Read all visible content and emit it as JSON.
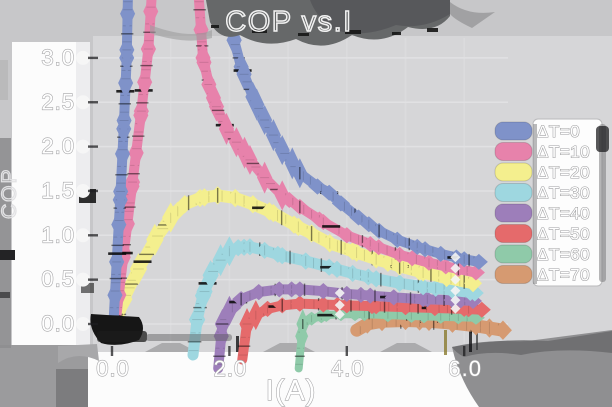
{
  "title": "COP vs.I",
  "axes": {
    "x": {
      "label": "I(A)",
      "ticks": [
        {
          "label": "0.0",
          "value": 0.0
        },
        {
          "label": "2.0",
          "value": 2.0
        },
        {
          "label": "4.0",
          "value": 4.0
        },
        {
          "label": "6.0",
          "value": 6.0
        }
      ]
    },
    "y": {
      "label": "COP",
      "ticks": [
        {
          "label": "3.0",
          "value": 3.0
        },
        {
          "label": "2.5",
          "value": 2.5
        },
        {
          "label": "2.0",
          "value": 2.0
        },
        {
          "label": "1.5",
          "value": 1.5
        },
        {
          "label": "1.0",
          "value": 1.0
        },
        {
          "label": "0.5",
          "value": 0.5
        },
        {
          "label": "0.0",
          "value": 0.0
        }
      ]
    }
  },
  "legend": {
    "position": "right",
    "items": [
      "ΔT=0",
      "ΔT=10",
      "ΔT=20",
      "ΔT=30",
      "ΔT=40",
      "ΔT=50",
      "ΔT=60",
      "ΔT=70"
    ]
  },
  "colors": {
    "background": "#c7c7c9",
    "plot_background": "#d6d6d8",
    "grid": "#e3e3e5",
    "label_strip": "#fcfcfc",
    "legend_box": "#fdfdfd"
  },
  "chart_data": {
    "type": "line",
    "title": "COP vs.I",
    "xlabel": "I(A)",
    "ylabel": "COP",
    "xlim": [
      0,
      6.8
    ],
    "ylim": [
      0,
      3.0
    ],
    "grid": true,
    "legend_position": "right",
    "series": [
      {
        "name": "ΔT=0",
        "color": "#7f92c9",
        "line_width": 10,
        "points": [
          [
            0.02,
            -0.05
          ],
          [
            0.08,
            0.7
          ],
          [
            0.14,
            1.4
          ],
          [
            0.2,
            2.2
          ],
          [
            0.25,
            3.0
          ],
          [
            0.28,
            3.95
          ],
          [
            2.0,
            3.95
          ],
          [
            2.08,
            3.2
          ],
          [
            2.2,
            2.9
          ],
          [
            2.4,
            2.56
          ],
          [
            2.6,
            2.3
          ],
          [
            2.9,
            1.96
          ],
          [
            3.2,
            1.7
          ],
          [
            3.5,
            1.55
          ],
          [
            3.7,
            1.48
          ],
          [
            3.9,
            1.36
          ],
          [
            4.2,
            1.2
          ],
          [
            4.55,
            1.05
          ],
          [
            4.86,
            0.95
          ],
          [
            5.2,
            0.87
          ],
          [
            5.6,
            0.79
          ],
          [
            6.0,
            0.73
          ],
          [
            6.25,
            0.7
          ]
        ]
      },
      {
        "name": "ΔT=10",
        "color": "#e782ab",
        "line_width": 10,
        "points": [
          [
            0.05,
            -0.05
          ],
          [
            0.2,
            0.8
          ],
          [
            0.35,
            1.6
          ],
          [
            0.5,
            2.4
          ],
          [
            0.62,
            3.1
          ],
          [
            0.7,
            3.95
          ],
          [
            1.45,
            3.95
          ],
          [
            1.55,
            3.0
          ],
          [
            1.65,
            2.7
          ],
          [
            1.78,
            2.45
          ],
          [
            1.95,
            2.2
          ],
          [
            2.12,
            2.05
          ],
          [
            2.35,
            1.85
          ],
          [
            2.6,
            1.65
          ],
          [
            2.9,
            1.45
          ],
          [
            3.2,
            1.32
          ],
          [
            3.6,
            1.15
          ],
          [
            4.0,
            1.0
          ],
          [
            4.4,
            0.9
          ],
          [
            4.9,
            0.78
          ],
          [
            5.4,
            0.69
          ],
          [
            5.9,
            0.62
          ],
          [
            6.2,
            0.58
          ]
        ]
      },
      {
        "name": "ΔT=20",
        "color": "#f4ef8e",
        "line_width": 12,
        "points": [
          [
            0.05,
            -0.02
          ],
          [
            0.2,
            0.28
          ],
          [
            0.45,
            0.62
          ],
          [
            0.73,
            0.95
          ],
          [
            1.0,
            1.2
          ],
          [
            1.24,
            1.35
          ],
          [
            1.5,
            1.42
          ],
          [
            1.8,
            1.45
          ],
          [
            2.1,
            1.42
          ],
          [
            2.4,
            1.35
          ],
          [
            2.75,
            1.25
          ],
          [
            3.1,
            1.12
          ],
          [
            3.4,
            1.02
          ],
          [
            3.71,
            0.91
          ],
          [
            4.1,
            0.82
          ],
          [
            4.5,
            0.73
          ],
          [
            4.9,
            0.65
          ],
          [
            5.3,
            0.58
          ],
          [
            5.7,
            0.52
          ],
          [
            6.15,
            0.46
          ]
        ]
      },
      {
        "name": "ΔT=30",
        "color": "#9ed7e0",
        "line_width": 11,
        "points": [
          [
            1.38,
            -0.35
          ],
          [
            1.45,
            0.05
          ],
          [
            1.55,
            0.32
          ],
          [
            1.68,
            0.55
          ],
          [
            1.85,
            0.72
          ],
          [
            2.0,
            0.82
          ],
          [
            2.15,
            0.86
          ],
          [
            2.35,
            0.87
          ],
          [
            2.6,
            0.83
          ],
          [
            2.9,
            0.77
          ],
          [
            3.3,
            0.71
          ],
          [
            3.7,
            0.64
          ],
          [
            4.1,
            0.57
          ],
          [
            4.5,
            0.51
          ],
          [
            4.9,
            0.46
          ],
          [
            5.3,
            0.42
          ],
          [
            5.8,
            0.38
          ],
          [
            6.18,
            0.35
          ]
        ]
      },
      {
        "name": "ΔT=40",
        "color": "#9d7eba",
        "line_width": 10,
        "points": [
          [
            1.81,
            -0.5
          ],
          [
            1.88,
            0.0
          ],
          [
            2.0,
            0.15
          ],
          [
            2.2,
            0.28
          ],
          [
            2.5,
            0.36
          ],
          [
            2.85,
            0.39
          ],
          [
            3.2,
            0.39
          ],
          [
            3.6,
            0.37
          ],
          [
            4.0,
            0.34
          ],
          [
            4.4,
            0.32
          ],
          [
            4.8,
            0.3
          ],
          [
            5.3,
            0.28
          ],
          [
            5.8,
            0.27
          ],
          [
            6.15,
            0.26
          ]
        ]
      },
      {
        "name": "ΔT=50",
        "color": "#e56a6b",
        "line_width": 10,
        "points": [
          [
            2.22,
            -0.4
          ],
          [
            2.3,
            0.0
          ],
          [
            2.45,
            0.1
          ],
          [
            2.65,
            0.17
          ],
          [
            2.9,
            0.21
          ],
          [
            3.2,
            0.23
          ],
          [
            3.6,
            0.22
          ],
          [
            4.0,
            0.21
          ],
          [
            4.5,
            0.2
          ],
          [
            5.0,
            0.19
          ],
          [
            5.5,
            0.18
          ],
          [
            6.0,
            0.17
          ],
          [
            6.3,
            0.16
          ]
        ]
      },
      {
        "name": "ΔT=60",
        "color": "#8fcaa9",
        "line_width": 8,
        "points": [
          [
            3.18,
            -0.5
          ],
          [
            3.25,
            0.0
          ],
          [
            3.4,
            0.06
          ],
          [
            3.65,
            0.1
          ],
          [
            3.9,
            0.11
          ],
          [
            4.3,
            0.11
          ],
          [
            4.7,
            0.1
          ],
          [
            5.1,
            0.09
          ],
          [
            5.6,
            0.08
          ],
          [
            6.2,
            0.07
          ]
        ]
      },
      {
        "name": "ΔT=70",
        "color": "#d69a71",
        "line_width": 13,
        "points": [
          [
            4.17,
            -0.07
          ],
          [
            4.35,
            0.0
          ],
          [
            4.6,
            0.03
          ],
          [
            5.0,
            0.04
          ],
          [
            5.4,
            0.03
          ],
          [
            5.8,
            0.01
          ],
          [
            6.2,
            -0.02
          ],
          [
            6.66,
            -0.07
          ]
        ]
      }
    ],
    "marker_highlights": [
      {
        "x": 3.88,
        "series": [
          4,
          5,
          6
        ]
      },
      {
        "x": 5.85,
        "series": [
          0,
          1,
          2,
          3,
          4,
          5
        ]
      }
    ]
  }
}
